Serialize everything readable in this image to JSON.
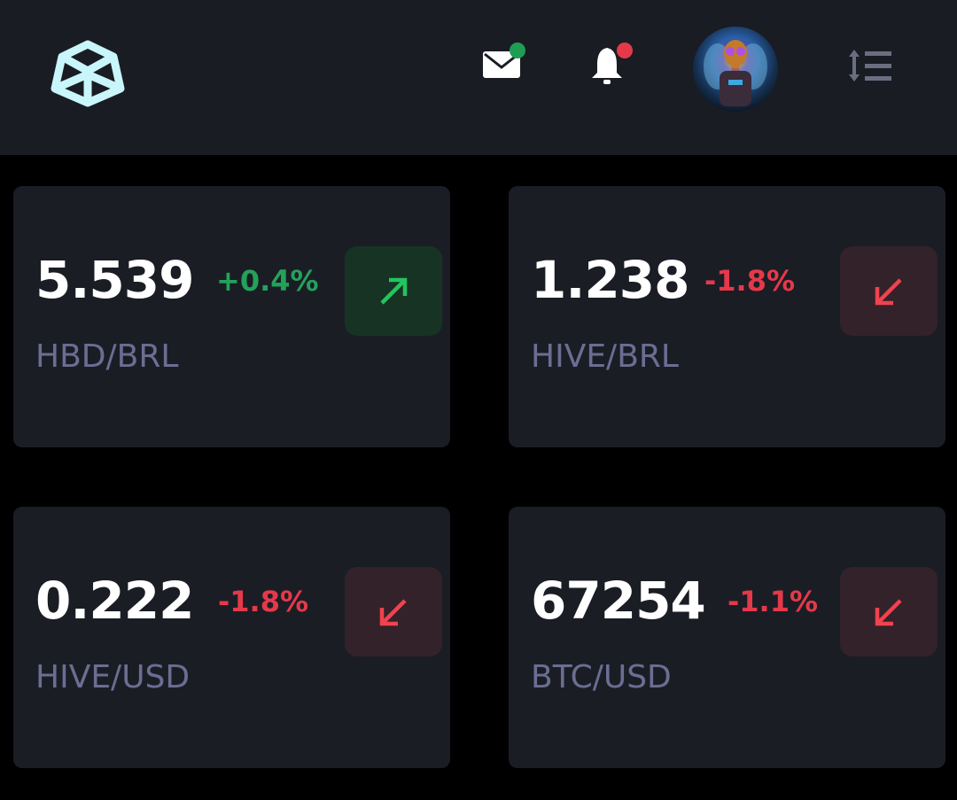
{
  "header": {
    "logo": "hive-hexagon-logo",
    "mail_icon": "mail-icon",
    "mail_badge_color": "#1f9d55",
    "bell_icon": "bell-icon",
    "bell_badge_color": "#e5394a",
    "avatar": "user-avatar-robot-bee",
    "menu_icon": "sort-list-icon"
  },
  "colors": {
    "up": "#22c55e",
    "down": "#f0424f",
    "up_text": "#23a25a",
    "down_text": "#e5394a"
  },
  "tickers": [
    {
      "value": "5.539",
      "change": "+0.4%",
      "pair": "HBD/BRL",
      "direction": "up"
    },
    {
      "value": "1.238",
      "change": "-1.8%",
      "pair": "HIVE/BRL",
      "direction": "down"
    },
    {
      "value": "0.222",
      "change": "-1.8%",
      "pair": "HIVE/USD",
      "direction": "down"
    },
    {
      "value": "67254",
      "change": "-1.1%",
      "pair": "BTC/USD",
      "direction": "down"
    }
  ]
}
